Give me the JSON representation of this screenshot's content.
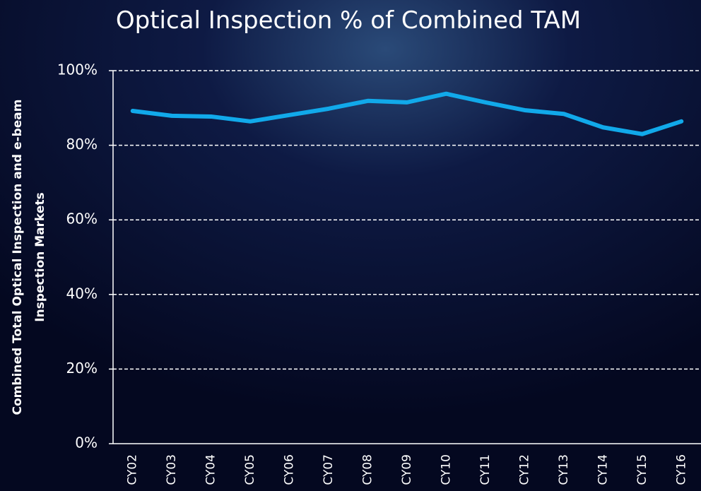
{
  "chart_data": {
    "type": "line",
    "title": "Optical Inspection % of Combined TAM",
    "y_label": [
      "Combined Total Optical Inspection and e-beam",
      "Inspection Markets"
    ],
    "categories": [
      "CY02",
      "CY03",
      "CY04",
      "CY05",
      "CY06",
      "CY07",
      "CY08",
      "CY09",
      "CY10",
      "CY11",
      "CY12",
      "CY13",
      "CY14",
      "CY15",
      "CY16"
    ],
    "series": [
      {
        "name": "Optical Inspection % of Combined TAM",
        "color": "#11a9ea",
        "values": [
          89.2,
          87.9,
          87.7,
          86.4,
          88.1,
          89.8,
          91.9,
          91.5,
          93.8,
          91.5,
          89.4,
          88.4,
          84.8,
          83.0,
          86.4
        ]
      }
    ],
    "ylim": [
      0,
      100
    ],
    "yticks": [
      {
        "value": 0,
        "label": "0%"
      },
      {
        "value": 20,
        "label": "20%"
      },
      {
        "value": 40,
        "label": "40%"
      },
      {
        "value": 60,
        "label": "60%"
      },
      {
        "value": 80,
        "label": "80%"
      },
      {
        "value": 100,
        "label": "100%"
      }
    ],
    "grid": true
  }
}
